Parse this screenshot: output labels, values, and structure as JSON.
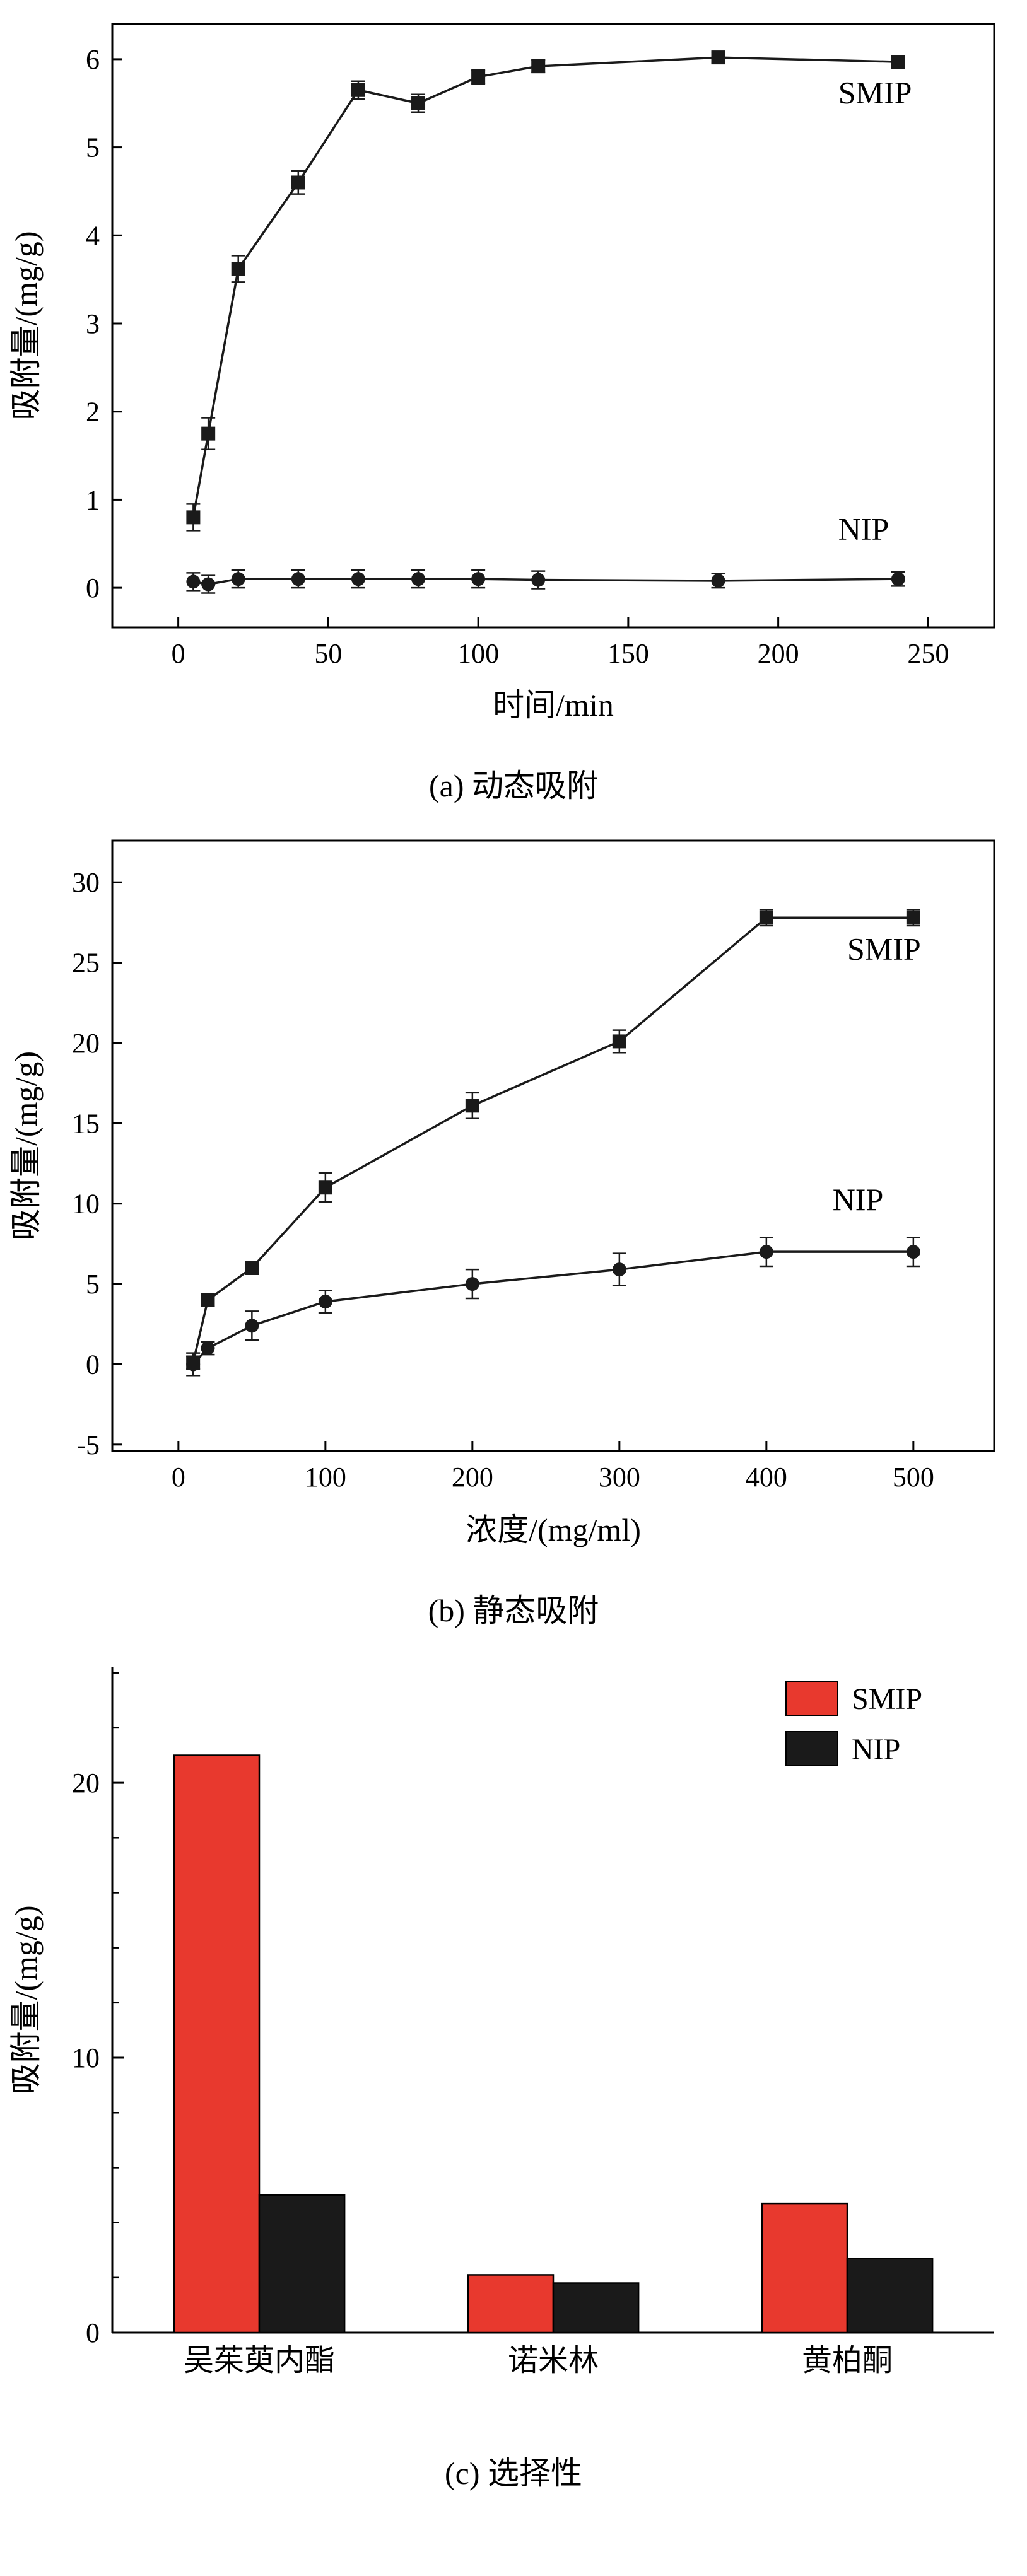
{
  "figure": {
    "captions": {
      "a": "(a) 动态吸附",
      "b": "(b) 静态吸附",
      "c": "(c) 选择性"
    }
  },
  "colors": {
    "smip_red": "#e8392e",
    "series_black": "#1a1a1a",
    "axis": "#000000"
  },
  "chart_data": [
    {
      "id": "a",
      "type": "line",
      "caption": "(a) 动态吸附",
      "xlabel": "时间/min",
      "ylabel": "吸附量/(mg/g)",
      "xlim": [
        -22,
        272
      ],
      "ylim": [
        -0.45,
        6.4
      ],
      "xticks": [
        0,
        50,
        100,
        150,
        200,
        250
      ],
      "yticks": [
        0,
        1,
        2,
        3,
        4,
        5,
        6
      ],
      "frame": "box",
      "series": [
        {
          "name": "SMIP",
          "marker": "square",
          "color": "#1a1a1a",
          "x": [
            5,
            10,
            20,
            40,
            60,
            80,
            100,
            120,
            180,
            240
          ],
          "y": [
            0.8,
            1.75,
            3.62,
            4.6,
            5.65,
            5.5,
            5.8,
            5.92,
            6.02,
            5.97
          ],
          "err": [
            0.15,
            0.18,
            0.15,
            0.13,
            0.1,
            0.1,
            0.08,
            0.07,
            0.06,
            0.06
          ],
          "label_pos": {
            "x": 220,
            "y": 5.5
          }
        },
        {
          "name": "NIP",
          "marker": "circle",
          "color": "#1a1a1a",
          "x": [
            5,
            10,
            20,
            40,
            60,
            80,
            100,
            120,
            180,
            240
          ],
          "y": [
            0.07,
            0.04,
            0.1,
            0.1,
            0.1,
            0.1,
            0.1,
            0.09,
            0.08,
            0.1
          ],
          "err": [
            0.1,
            0.1,
            0.1,
            0.1,
            0.1,
            0.1,
            0.1,
            0.1,
            0.08,
            0.08
          ],
          "label_pos": {
            "x": 220,
            "y": 0.55
          }
        }
      ]
    },
    {
      "id": "b",
      "type": "line",
      "caption": "(b) 静态吸附",
      "xlabel": "浓度/(mg/ml)",
      "ylabel": "吸附量/(mg/g)",
      "xlim": [
        -45,
        555
      ],
      "ylim": [
        -5.4,
        32.6
      ],
      "xticks": [
        0,
        100,
        200,
        300,
        400,
        500
      ],
      "yticks": [
        -5,
        0,
        5,
        10,
        15,
        20,
        25,
        30
      ],
      "frame": "box",
      "series": [
        {
          "name": "SMIP",
          "marker": "square",
          "color": "#1a1a1a",
          "x": [
            10,
            20,
            50,
            100,
            200,
            300,
            400,
            500
          ],
          "y": [
            0.1,
            4.0,
            6.0,
            11.0,
            16.1,
            20.1,
            27.8,
            27.8
          ],
          "err": [
            0.4,
            0.4,
            0.4,
            0.9,
            0.8,
            0.7,
            0.5,
            0.5
          ],
          "label_pos": {
            "x": 455,
            "y": 25.2
          }
        },
        {
          "name": "NIP",
          "marker": "circle",
          "color": "#1a1a1a",
          "x": [
            10,
            20,
            50,
            100,
            200,
            300,
            400,
            500
          ],
          "y": [
            0.0,
            1.0,
            2.4,
            3.9,
            5.0,
            5.9,
            7.0,
            7.0
          ],
          "err": [
            0.7,
            0.4,
            0.9,
            0.7,
            0.9,
            1.0,
            0.9,
            0.9
          ],
          "label_pos": {
            "x": 445,
            "y": 9.6
          }
        }
      ]
    },
    {
      "id": "c",
      "type": "bar",
      "caption": "(c) 选择性",
      "xlabel": "",
      "ylabel": "吸附量/(mg/g)",
      "ylim": [
        0,
        24.2
      ],
      "yticks": [
        0,
        10,
        20
      ],
      "yminor": [
        2,
        4,
        6,
        8,
        12,
        14,
        16,
        18,
        22,
        24
      ],
      "categories": [
        "吴茱萸内酯",
        "诺米林",
        "黄柏酮"
      ],
      "series": [
        {
          "name": "SMIP",
          "color": "#e8392e",
          "values": [
            21.0,
            2.1,
            4.7
          ]
        },
        {
          "name": "NIP",
          "color": "#1a1a1a",
          "values": [
            5.0,
            1.8,
            2.7
          ]
        }
      ],
      "legend": [
        "SMIP",
        "NIP"
      ],
      "legend_position": "top-right"
    }
  ]
}
